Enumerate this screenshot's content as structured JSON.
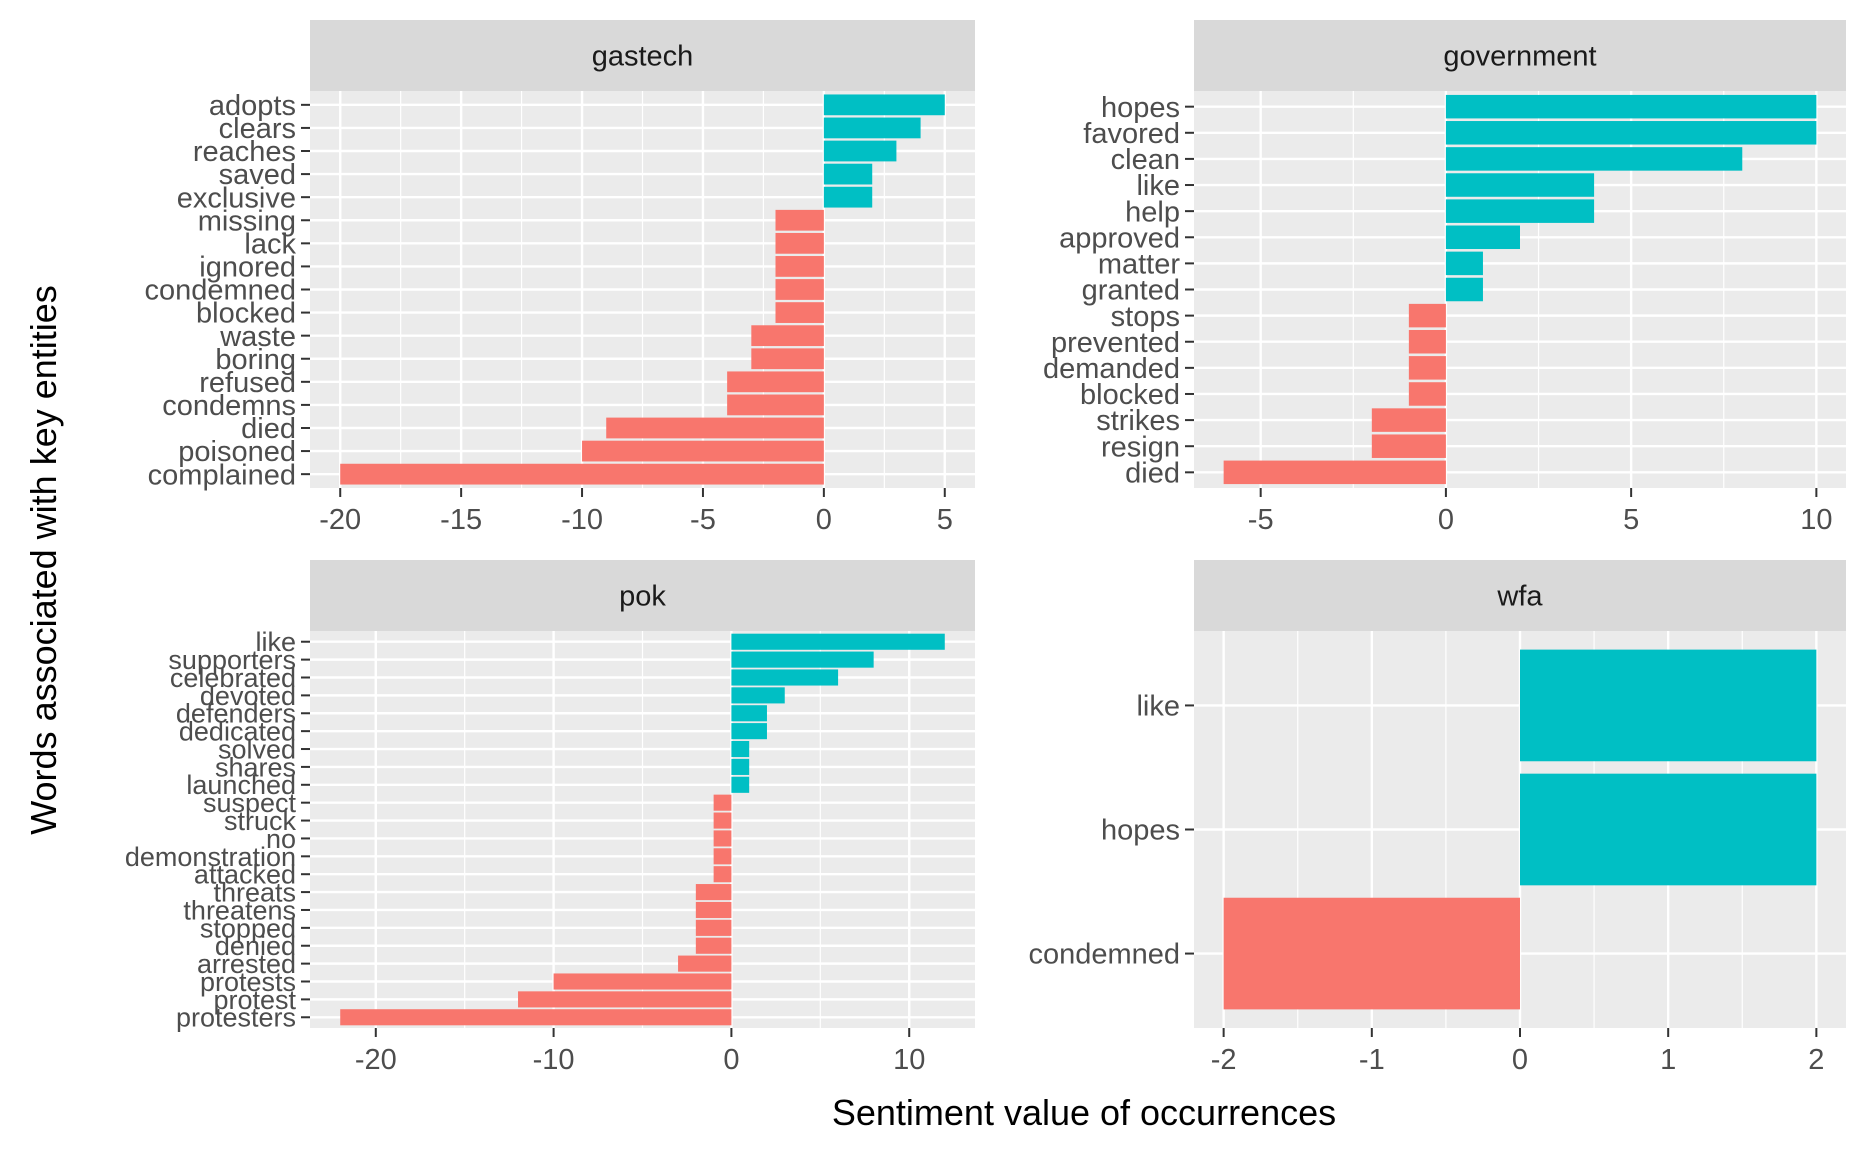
{
  "chart_data": {
    "type": "bar",
    "orientation": "horizontal",
    "ylabel": "Words associated with key entities",
    "xlabel": "Sentiment value of occurrences",
    "grid": true,
    "legend": "none",
    "colors": {
      "positive": "#00BFC4",
      "negative": "#F8766D",
      "panel_bg": "#EBEBEB",
      "strip_bg": "#D9D9D9",
      "grid": "#FFFFFF"
    },
    "panels": [
      {
        "name": "gastech",
        "xlim": [
          -21.25,
          6.25
        ],
        "xticks": [
          -20,
          -15,
          -10,
          -5,
          0,
          5
        ],
        "categories": [
          "adopts",
          "clears",
          "reaches",
          "saved",
          "exclusive",
          "missing",
          "lack",
          "ignored",
          "condemned",
          "blocked",
          "waste",
          "boring",
          "refused",
          "condemns",
          "died",
          "poisoned",
          "complained"
        ],
        "values": [
          5,
          4,
          3,
          2,
          2,
          -2,
          -2,
          -2,
          -2,
          -2,
          -3,
          -3,
          -4,
          -4,
          -9,
          -10,
          -20
        ]
      },
      {
        "name": "government",
        "xlim": [
          -6.8,
          10.8
        ],
        "xticks": [
          -5,
          0,
          5,
          10
        ],
        "categories": [
          "hopes",
          "favored",
          "clean",
          "like",
          "help",
          "approved",
          "matter",
          "granted",
          "stops",
          "prevented",
          "demanded",
          "blocked",
          "strikes",
          "resign",
          "died"
        ],
        "values": [
          10,
          10,
          8,
          4,
          4,
          2,
          1,
          1,
          -1,
          -1,
          -1,
          -1,
          -2,
          -2,
          -6
        ]
      },
      {
        "name": "pok",
        "xlim": [
          -23.7,
          13.7
        ],
        "xticks": [
          -20,
          -10,
          0,
          10
        ],
        "categories": [
          "like",
          "supporters",
          "celebrated",
          "devoted",
          "defenders",
          "dedicated",
          "solved",
          "shares",
          "launched",
          "suspect",
          "struck",
          "no",
          "demonstration",
          "attacked",
          "threats",
          "threatens",
          "stopped",
          "denied",
          "arrested",
          "protests",
          "protest",
          "protesters"
        ],
        "values": [
          12,
          8,
          6,
          3,
          2,
          2,
          1,
          1,
          1,
          -1,
          -1,
          -1,
          -1,
          -1,
          -2,
          -2,
          -2,
          -2,
          -3,
          -10,
          -12,
          -22
        ]
      },
      {
        "name": "wfa",
        "xlim": [
          -2.2,
          2.2
        ],
        "xticks": [
          -2,
          -1,
          0,
          1,
          2
        ],
        "categories": [
          "like",
          "hopes",
          "condemned"
        ],
        "values": [
          2,
          2,
          -2
        ]
      }
    ]
  }
}
